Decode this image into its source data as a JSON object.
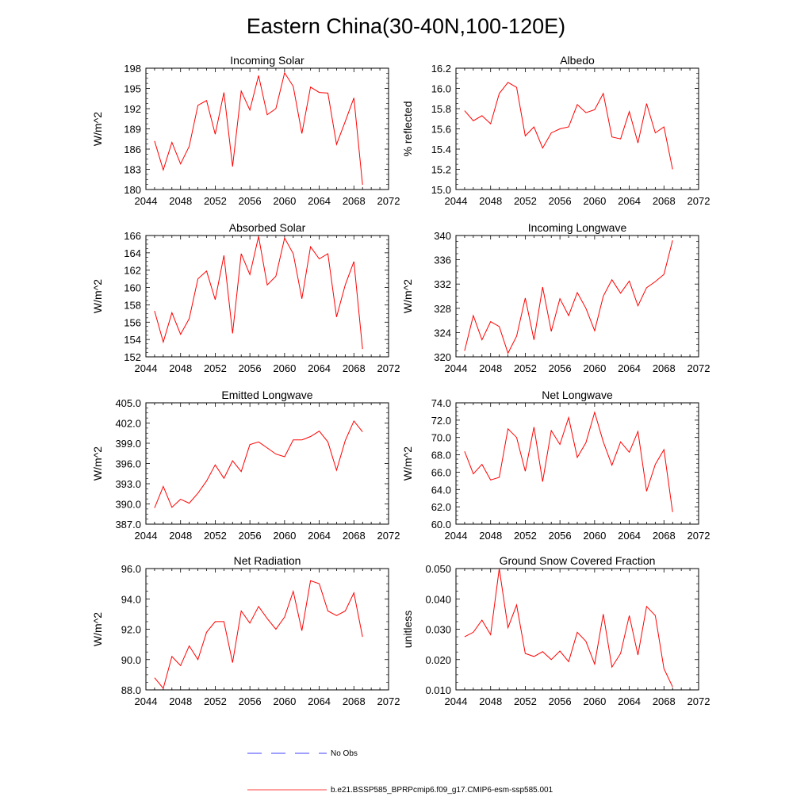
{
  "figure": {
    "title": "Eastern China(30-40N,100-120E)"
  },
  "colors": {
    "series": "#ff0000",
    "obs": "#0000ff",
    "axis": "#000000"
  },
  "legend": {
    "obs_label": "No Obs",
    "model_label": "b.e21.BSSP585_BPRPcmip6.f09_g17.CMIP6-esm-ssp585.001"
  },
  "chart_data": [
    {
      "type": "line",
      "title": "Incoming Solar",
      "ylabel": "W/m^2",
      "xlim": [
        2044,
        2072
      ],
      "ylim": [
        180,
        198
      ],
      "xticks": [
        "2044",
        "2048",
        "2052",
        "2056",
        "2060",
        "2064",
        "2068",
        "2072"
      ],
      "yticks": [
        "180",
        "183",
        "186",
        "189",
        "192",
        "195",
        "198"
      ],
      "x": [
        2045,
        2046,
        2047,
        2048,
        2049,
        2050,
        2051,
        2052,
        2053,
        2054,
        2055,
        2056,
        2057,
        2058,
        2059,
        2060,
        2061,
        2062,
        2063,
        2064,
        2065,
        2066,
        2067,
        2068,
        2069
      ],
      "series": [
        {
          "values": [
            187.2,
            182.9,
            187.0,
            183.8,
            186.4,
            192.5,
            193.2,
            188.2,
            194.4,
            183.4,
            194.6,
            191.8,
            196.9,
            191.1,
            192.0,
            197.3,
            195.3,
            188.3,
            195.2,
            194.4,
            194.3,
            186.7,
            190.1,
            193.6,
            180.7
          ]
        }
      ]
    },
    {
      "type": "line",
      "title": "Albedo",
      "ylabel": "% reflected",
      "xlim": [
        2044,
        2072
      ],
      "ylim": [
        15.0,
        16.2
      ],
      "xticks": [
        "2044",
        "2048",
        "2052",
        "2056",
        "2060",
        "2064",
        "2068",
        "2072"
      ],
      "yticks": [
        "15.0",
        "15.2",
        "15.4",
        "15.6",
        "15.8",
        "16.0",
        "16.2"
      ],
      "x": [
        2045,
        2046,
        2047,
        2048,
        2049,
        2050,
        2051,
        2052,
        2053,
        2054,
        2055,
        2056,
        2057,
        2058,
        2059,
        2060,
        2061,
        2062,
        2063,
        2064,
        2065,
        2066,
        2067,
        2068,
        2069
      ],
      "series": [
        {
          "values": [
            15.78,
            15.68,
            15.73,
            15.65,
            15.95,
            16.06,
            16.01,
            15.53,
            15.62,
            15.41,
            15.56,
            15.6,
            15.62,
            15.84,
            15.76,
            15.79,
            15.95,
            15.52,
            15.5,
            15.77,
            15.46,
            15.85,
            15.56,
            15.62,
            15.2
          ]
        }
      ]
    },
    {
      "type": "line",
      "title": "Absorbed Solar",
      "ylabel": "W/m^2",
      "xlim": [
        2044,
        2072
      ],
      "ylim": [
        152,
        166
      ],
      "xticks": [
        "2044",
        "2048",
        "2052",
        "2056",
        "2060",
        "2064",
        "2068",
        "2072"
      ],
      "yticks": [
        "152",
        "154",
        "156",
        "158",
        "160",
        "162",
        "164",
        "166"
      ],
      "x": [
        2045,
        2046,
        2047,
        2048,
        2049,
        2050,
        2051,
        2052,
        2053,
        2054,
        2055,
        2056,
        2057,
        2058,
        2059,
        2060,
        2061,
        2062,
        2063,
        2064,
        2065,
        2066,
        2067,
        2068,
        2069
      ],
      "series": [
        {
          "values": [
            157.3,
            153.7,
            157.1,
            154.6,
            156.4,
            161.0,
            161.9,
            158.6,
            163.7,
            154.7,
            163.9,
            161.5,
            165.9,
            160.3,
            161.3,
            165.7,
            163.9,
            158.7,
            164.7,
            163.3,
            163.9,
            156.6,
            160.3,
            163.0,
            152.9
          ]
        }
      ]
    },
    {
      "type": "line",
      "title": "Incoming Longwave",
      "ylabel": "W/m^2",
      "xlim": [
        2044,
        2072
      ],
      "ylim": [
        320,
        340
      ],
      "xticks": [
        "2044",
        "2048",
        "2052",
        "2056",
        "2060",
        "2064",
        "2068",
        "2072"
      ],
      "yticks": [
        "320",
        "324",
        "328",
        "332",
        "336",
        "340"
      ],
      "x": [
        2045,
        2046,
        2047,
        2048,
        2049,
        2050,
        2051,
        2052,
        2053,
        2054,
        2055,
        2056,
        2057,
        2058,
        2059,
        2060,
        2061,
        2062,
        2063,
        2064,
        2065,
        2066,
        2067,
        2068,
        2069
      ],
      "series": [
        {
          "values": [
            321.0,
            326.8,
            322.8,
            325.8,
            325.0,
            320.6,
            323.4,
            329.7,
            322.8,
            331.5,
            324.2,
            329.6,
            326.8,
            330.6,
            328.0,
            324.3,
            330.0,
            332.7,
            330.5,
            332.5,
            328.4,
            331.4,
            332.4,
            333.6,
            339.2
          ]
        }
      ]
    },
    {
      "type": "line",
      "title": "Emitted Longwave",
      "ylabel": "W/m^2",
      "xlim": [
        2044,
        2072
      ],
      "ylim": [
        387.0,
        405.0
      ],
      "xticks": [
        "2044",
        "2048",
        "2052",
        "2056",
        "2060",
        "2064",
        "2068",
        "2072"
      ],
      "yticks": [
        "387.0",
        "390.0",
        "393.0",
        "396.0",
        "399.0",
        "402.0",
        "405.0"
      ],
      "x": [
        2045,
        2046,
        2047,
        2048,
        2049,
        2050,
        2051,
        2052,
        2053,
        2054,
        2055,
        2056,
        2057,
        2058,
        2059,
        2060,
        2061,
        2062,
        2063,
        2064,
        2065,
        2066,
        2067,
        2068,
        2069
      ],
      "series": [
        {
          "values": [
            389.4,
            392.6,
            389.5,
            390.7,
            390.1,
            391.6,
            393.4,
            395.8,
            393.8,
            396.4,
            394.8,
            398.8,
            399.2,
            398.3,
            397.4,
            397.0,
            399.5,
            399.5,
            400.0,
            400.8,
            399.2,
            395.0,
            399.4,
            402.3,
            400.7
          ]
        }
      ]
    },
    {
      "type": "line",
      "title": "Net Longwave",
      "ylabel": "W/m^2",
      "xlim": [
        2044,
        2072
      ],
      "ylim": [
        60.0,
        74.0
      ],
      "xticks": [
        "2044",
        "2048",
        "2052",
        "2056",
        "2060",
        "2064",
        "2068",
        "2072"
      ],
      "yticks": [
        "60.0",
        "62.0",
        "64.0",
        "66.0",
        "68.0",
        "70.0",
        "72.0",
        "74.0"
      ],
      "x": [
        2045,
        2046,
        2047,
        2048,
        2049,
        2050,
        2051,
        2052,
        2053,
        2054,
        2055,
        2056,
        2057,
        2058,
        2059,
        2060,
        2061,
        2062,
        2063,
        2064,
        2065,
        2066,
        2067,
        2068,
        2069
      ],
      "series": [
        {
          "values": [
            68.4,
            65.8,
            66.9,
            65.1,
            65.4,
            71.0,
            70.0,
            66.1,
            71.2,
            64.9,
            70.8,
            69.2,
            72.3,
            67.7,
            69.4,
            72.9,
            69.5,
            66.8,
            69.5,
            68.3,
            70.7,
            63.8,
            66.9,
            68.6,
            61.4
          ]
        }
      ]
    },
    {
      "type": "line",
      "title": "Net Radiation",
      "ylabel": "W/m^2",
      "xlim": [
        2044,
        2072
      ],
      "ylim": [
        88.0,
        96.0
      ],
      "xticks": [
        "2044",
        "2048",
        "2052",
        "2056",
        "2060",
        "2064",
        "2068",
        "2072"
      ],
      "yticks": [
        "88.0",
        "90.0",
        "92.0",
        "94.0",
        "96.0"
      ],
      "x": [
        2045,
        2046,
        2047,
        2048,
        2049,
        2050,
        2051,
        2052,
        2053,
        2054,
        2055,
        2056,
        2057,
        2058,
        2059,
        2060,
        2061,
        2062,
        2063,
        2064,
        2065,
        2066,
        2067,
        2068,
        2069
      ],
      "series": [
        {
          "values": [
            88.8,
            88.1,
            90.2,
            89.6,
            90.9,
            90.0,
            91.8,
            92.5,
            92.5,
            89.8,
            93.2,
            92.4,
            93.5,
            92.7,
            92.0,
            92.8,
            94.5,
            91.9,
            95.2,
            95.0,
            93.2,
            92.9,
            93.2,
            94.4,
            91.5
          ]
        }
      ]
    },
    {
      "type": "line",
      "title": "Ground Snow Covered Fraction",
      "ylabel": "unitless",
      "xlim": [
        2044,
        2072
      ],
      "ylim": [
        0.01,
        0.05
      ],
      "xticks": [
        "2044",
        "2048",
        "2052",
        "2056",
        "2060",
        "2064",
        "2068",
        "2072"
      ],
      "yticks": [
        "0.010",
        "0.020",
        "0.030",
        "0.040",
        "0.050"
      ],
      "x": [
        2045,
        2046,
        2047,
        2048,
        2049,
        2050,
        2051,
        2052,
        2053,
        2054,
        2055,
        2056,
        2057,
        2058,
        2059,
        2060,
        2061,
        2062,
        2063,
        2064,
        2065,
        2066,
        2067,
        2068,
        2069
      ],
      "series": [
        {
          "values": [
            0.0275,
            0.029,
            0.033,
            0.0282,
            0.05,
            0.0305,
            0.038,
            0.022,
            0.021,
            0.0226,
            0.02,
            0.0228,
            0.0193,
            0.029,
            0.026,
            0.0185,
            0.035,
            0.0175,
            0.022,
            0.0345,
            0.0215,
            0.0375,
            0.0345,
            0.017,
            0.011
          ]
        }
      ]
    }
  ]
}
